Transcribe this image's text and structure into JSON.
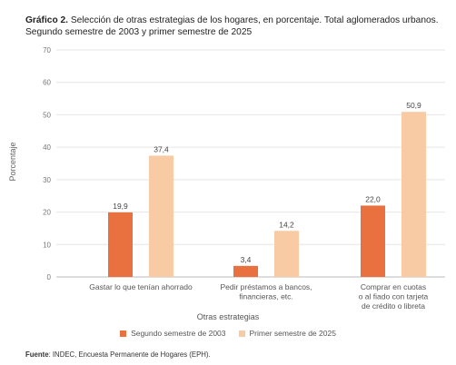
{
  "title": {
    "bold": "Gráfico 2.",
    "text": "Selección de otras estrategias de los hogares, en porcentaje. Total aglomerados urbanos. Segundo semestre de 2003 y primer semestre de 2025"
  },
  "source": {
    "bold": "Fuente",
    "text": ": INDEC, Encuesta Permanente de Hogares (EPH)."
  },
  "chart_data": {
    "type": "bar",
    "xlabel": "Otras estrategias",
    "ylabel": "Porcentaje",
    "ylim": [
      0,
      70
    ],
    "yticks": [
      0,
      10,
      20,
      30,
      40,
      50,
      60,
      70
    ],
    "grid": true,
    "legend_position": "bottom",
    "categories": [
      [
        "Gastar lo que tenían ahorrado"
      ],
      [
        "Pedir préstamos a bancos,",
        "financieras, etc."
      ],
      [
        "Comprar en cuotas",
        "o al fiado con tarjeta",
        "de crédito o libreta"
      ]
    ],
    "series": [
      {
        "name": "Segundo semestre de 2003",
        "color": "#E8713F",
        "values": [
          19.9,
          3.4,
          22.0
        ],
        "labels": [
          "19,9",
          "3,4",
          "22,0"
        ]
      },
      {
        "name": "Primer semestre de 2025",
        "color": "#F8CBA5",
        "values": [
          37.4,
          14.2,
          50.9
        ],
        "labels": [
          "37,4",
          "14,2",
          "50,9"
        ]
      }
    ]
  }
}
